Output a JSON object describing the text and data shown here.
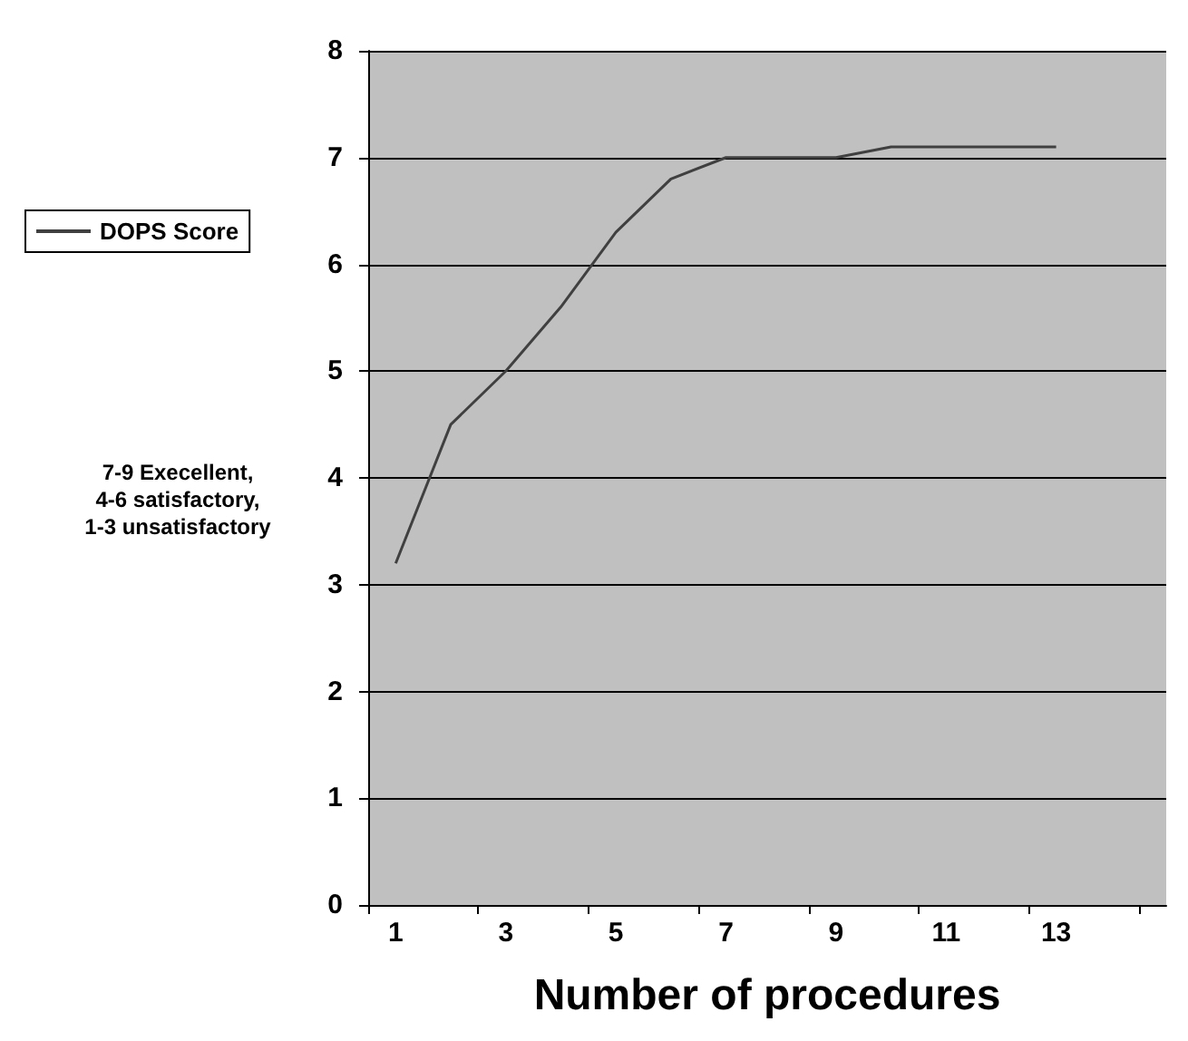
{
  "chart_data": {
    "type": "line",
    "xlabel": "Number of procedures",
    "x": [
      1,
      2,
      3,
      4,
      5,
      6,
      7,
      8,
      9,
      10,
      11,
      12,
      13
    ],
    "xlim": [
      0.5,
      15
    ],
    "xticks": [
      {
        "value": 0.5,
        "label": null
      },
      1,
      {
        "value": 2.5,
        "label": null
      },
      3,
      {
        "value": 4.5,
        "label": null
      },
      5,
      {
        "value": 6.5,
        "label": null
      },
      7,
      {
        "value": 8.5,
        "label": null
      },
      9,
      {
        "value": 10.5,
        "label": null
      },
      11,
      {
        "value": 12.5,
        "label": null
      },
      13,
      {
        "value": 14.5,
        "label": null
      }
    ],
    "series": [
      {
        "name": "DOPS Score",
        "color": "#404040",
        "values": [
          3.2,
          4.5,
          5.0,
          5.6,
          6.3,
          6.8,
          7.0,
          7.0,
          7.0,
          7.1,
          7.1,
          7.1,
          7.1
        ]
      }
    ],
    "ylim": [
      0,
      8
    ],
    "yticks": [
      0,
      1,
      2,
      3,
      4,
      5,
      6,
      7,
      8
    ],
    "grid": "y",
    "legend": "left",
    "marker": "none",
    "line_style": "solid",
    "annotations": [
      "7-9 Execellent,\n4-6 satisfactory,\n1-3 unsatisfactory"
    ]
  }
}
